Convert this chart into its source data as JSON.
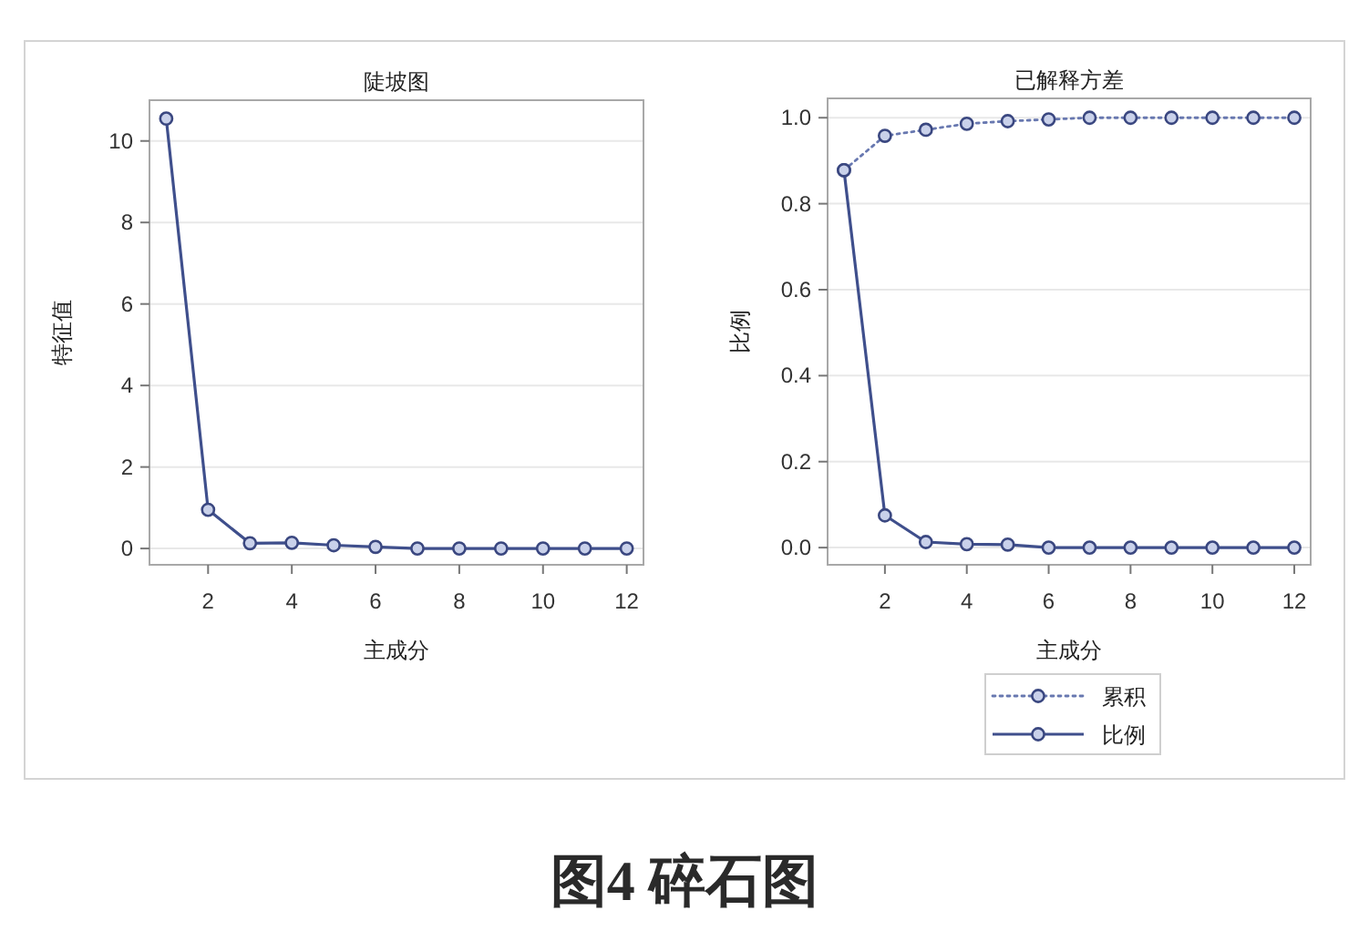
{
  "chart_data": [
    {
      "type": "line",
      "title": "陡坡图",
      "xlabel": "主成分",
      "ylabel": "特征值",
      "x": [
        1,
        2,
        3,
        4,
        5,
        6,
        7,
        8,
        9,
        10,
        11,
        12
      ],
      "series": [
        {
          "color": "#3f4f8c",
          "values": [
            10.55,
            0.95,
            0.13,
            0.14,
            0.08,
            0.04,
            0,
            0,
            0,
            0,
            0,
            0
          ]
        }
      ],
      "xlim": [
        0.6,
        12.4
      ],
      "xticks": [
        2,
        4,
        6,
        8,
        10,
        12
      ],
      "ylim": [
        -0.4,
        11
      ],
      "yticks": [
        0,
        2,
        4,
        6,
        8,
        10
      ],
      "grid": "y",
      "marker": "circle",
      "line_style": "solid",
      "annotations": [
        "图4 碎石图"
      ]
    },
    {
      "type": "line",
      "title": "已解释方差",
      "xlabel": "主成分",
      "ylabel": "比例",
      "x": [
        1,
        2,
        3,
        4,
        5,
        6,
        7,
        8,
        9,
        10,
        11,
        12
      ],
      "series": [
        {
          "name": "累积",
          "color": "#6878b0",
          "line_style": "dotted",
          "values": [
            0.878,
            0.958,
            0.972,
            0.986,
            0.992,
            0.996,
            1,
            1,
            1,
            1,
            1,
            1
          ]
        },
        {
          "name": "比例",
          "color": "#3f4f8c",
          "line_style": "solid",
          "values": [
            0.878,
            0.075,
            0.013,
            0.008,
            0.007,
            0,
            0,
            0,
            0,
            0,
            0,
            0
          ]
        }
      ],
      "xlim": [
        0.6,
        12.4
      ],
      "xticks": [
        2,
        4,
        6,
        8,
        10,
        12
      ],
      "ylim": [
        -0.04,
        1.045
      ],
      "yticks": [
        {
          "value": 0,
          "label": "0.0"
        },
        0.2,
        0.4,
        0.6,
        0.8,
        {
          "value": 1,
          "label": "1.0"
        }
      ],
      "grid": "y",
      "marker": "circle",
      "legend": "bottom"
    }
  ]
}
